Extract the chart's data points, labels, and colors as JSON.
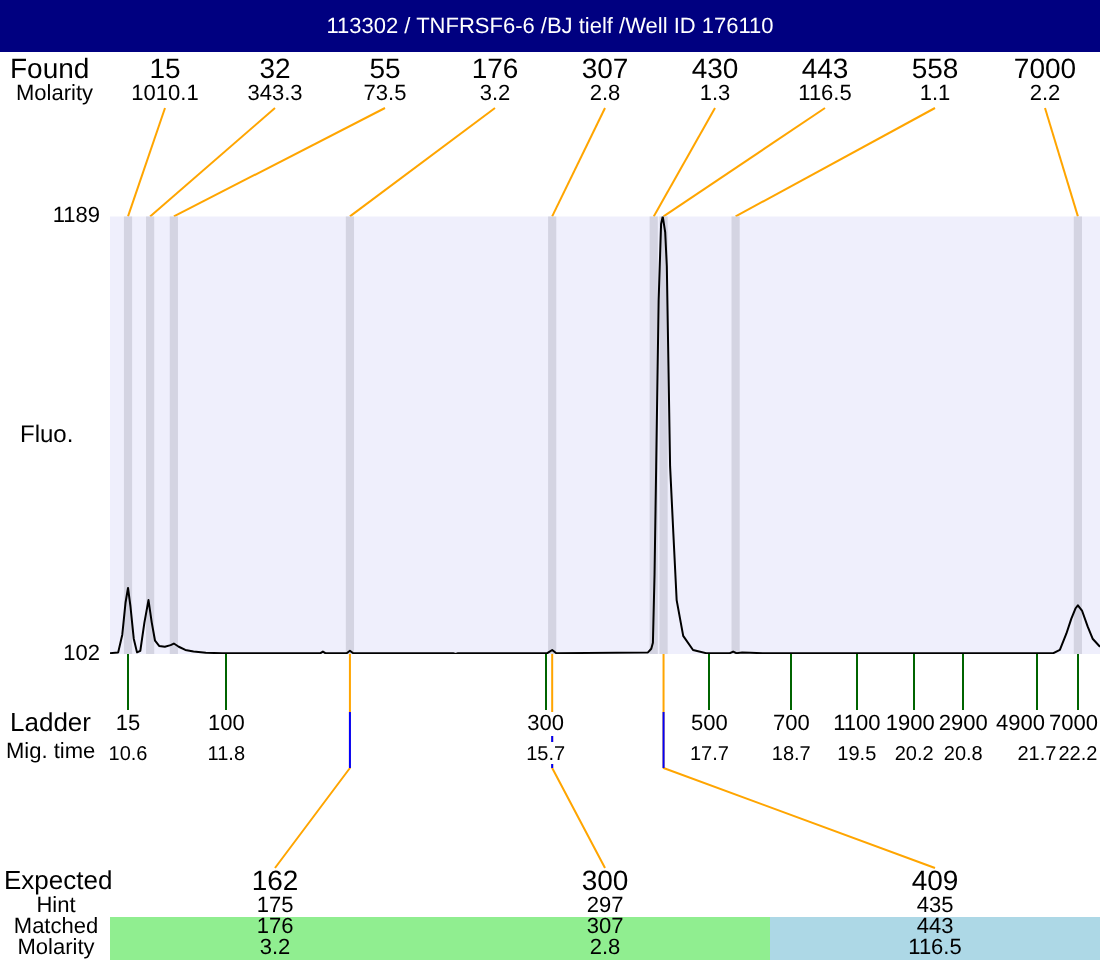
{
  "chart_data": {
    "type": "line",
    "title": "113302 / TNFRSF6-6 /BJ tielf /Well ID 176110",
    "ylabel": "Fluo.",
    "xlabel": "Mig. time",
    "marker": "none",
    "x": [
      10.38,
      10.48,
      10.53,
      10.57,
      10.6,
      10.63,
      10.67,
      10.71,
      10.75,
      10.8,
      10.85,
      10.89,
      10.93,
      10.98,
      11.05,
      11.12,
      11.16,
      11.22,
      11.3,
      11.4,
      11.55,
      11.75,
      12.95,
      12.98,
      13.01,
      13.27,
      13.31,
      13.35,
      14.57,
      14.6,
      14.63,
      15.72,
      15.78,
      15.83,
      16.95,
      16.99,
      17.01,
      17.03,
      17.05,
      17.08,
      17.11,
      17.13,
      17.16,
      17.18,
      17.2,
      17.22,
      17.26,
      17.3,
      17.38,
      17.5,
      17.66,
      17.95,
      17.99,
      18.03,
      18.1,
      18.2,
      18.35,
      21.9,
      21.98,
      22.06,
      22.12,
      22.17,
      22.2,
      22.25,
      22.32,
      22.38,
      22.47
    ],
    "series": [
      {
        "color": "#000000",
        "values": [
          104,
          106,
          150,
          230,
          266,
          220,
          140,
          106,
          110,
          180,
          236,
          180,
          135,
          122,
          120,
          124,
          128,
          120,
          112,
          108,
          105,
          104,
          104,
          108,
          104,
          104,
          110,
          104,
          104,
          102,
          104,
          104,
          112,
          104,
          106,
          115,
          130,
          300,
          568,
          980,
          1170,
          1189,
          1150,
          1065,
          817,
          568,
          400,
          236,
          147,
          112,
          104,
          104,
          108,
          104,
          106,
          105,
          104,
          104,
          112,
          153,
          190,
          215,
          223,
          210,
          170,
          140,
          120
        ]
      }
    ],
    "xlim": [
      10.38,
      22.47
    ],
    "xticks": [
      10.6,
      11.8,
      15.7,
      17.7,
      18.7,
      19.5,
      20.2,
      20.8,
      21.7,
      22.2
    ],
    "ylim": [
      102,
      1189
    ],
    "yticks": [
      102,
      1189
    ],
    "bands": [
      {
        "axis": "x",
        "from": 10.55,
        "to": 10.65,
        "color": "#d4d4e2"
      },
      {
        "axis": "x",
        "from": 10.82,
        "to": 10.92,
        "color": "#d4d4e2"
      },
      {
        "axis": "x",
        "from": 11.11,
        "to": 11.21,
        "color": "#d4d4e2"
      },
      {
        "axis": "x",
        "from": 13.26,
        "to": 13.36,
        "color": "#d4d4e2"
      },
      {
        "axis": "x",
        "from": 15.73,
        "to": 15.83,
        "color": "#d4d4e2"
      },
      {
        "axis": "x",
        "from": 16.97,
        "to": 17.07,
        "color": "#d4d4e2"
      },
      {
        "axis": "x",
        "from": 17.09,
        "to": 17.19,
        "color": "#d4d4e2"
      },
      {
        "axis": "x",
        "from": 17.97,
        "to": 18.07,
        "color": "#d4d4e2"
      },
      {
        "axis": "x",
        "from": 22.15,
        "to": 22.25,
        "color": "#d4d4e2"
      }
    ],
    "annotations": [
      "Found",
      "Molarity",
      "15",
      "32",
      "55",
      "176",
      "307",
      "430",
      "443",
      "558",
      "7000",
      {
        "text": "1010.1",
        "x": 10.6,
        "y": 1189
      },
      {
        "text": "343.3",
        "x": 10.87,
        "y": 1189
      },
      {
        "text": "73.5",
        "x": 11.16,
        "y": 1189
      },
      {
        "text": "3.2",
        "x": 13.31,
        "y": 1189
      },
      {
        "text": "2.8",
        "x": 15.78,
        "y": 1189
      },
      {
        "text": "1.3",
        "x": 17.02,
        "y": 1189
      },
      {
        "text": "116.5",
        "x": 17.14,
        "y": 1189
      },
      {
        "text": "1.1",
        "x": 18.02,
        "y": 1189
      },
      {
        "text": "2.2",
        "x": 22.2,
        "y": 1189
      },
      "Ladder",
      {
        "text": "15",
        "x": 10.6,
        "y": 102
      },
      {
        "text": "100",
        "x": 11.8,
        "y": 102
      },
      {
        "text": "300",
        "x": 15.7,
        "y": 102
      },
      {
        "text": "500",
        "x": 17.7,
        "y": 102
      },
      {
        "text": "700",
        "x": 18.7,
        "y": 102
      },
      {
        "text": "1100",
        "x": 19.5,
        "y": 102
      },
      {
        "text": "1900",
        "x": 20.2,
        "y": 102
      },
      {
        "text": "2900",
        "x": 20.8,
        "y": 102
      },
      {
        "text": "4900",
        "x": 21.7,
        "y": 102
      },
      {
        "text": "7000",
        "x": 22.2,
        "y": 102
      },
      "Expected",
      "Hint",
      "Matched",
      "Molarity",
      {
        "text": "162",
        "x": 13.31,
        "y": 102
      },
      {
        "text": "300",
        "x": 15.78,
        "y": 102
      },
      {
        "text": "409",
        "x": 17.14,
        "y": 102
      },
      "175",
      "297",
      "435",
      "176",
      "307",
      "443",
      "3.2",
      "2.8",
      "116.5"
    ]
  }
}
